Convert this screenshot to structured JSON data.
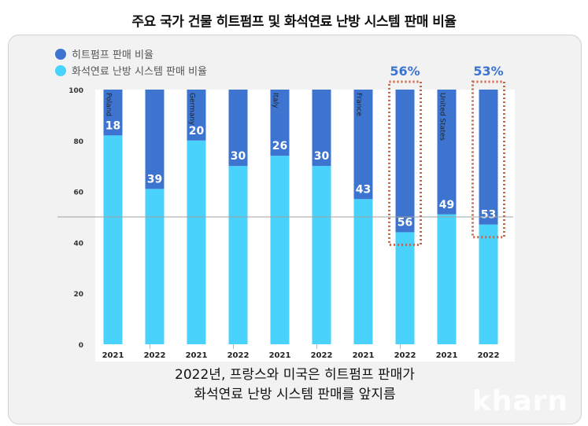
{
  "title": "주요 국가 건물 히트펌프 및 화석연료 난방 시스템 판매 비율",
  "caption_lines": [
    "2022년, 프랑스와 미국은 히트펌프 판매가",
    "화석연료 난방 시스템 판매를 앞지름"
  ],
  "watermark": "kharn",
  "colors": {
    "heat_pump": "#3c74d0",
    "fossil": "#49d2fb",
    "highlight_box": "#d0633e",
    "highlight_text": "#3c74d0",
    "reference_line": "#a0a0a0"
  },
  "chart_data": {
    "type": "bar",
    "stacked": true,
    "ylim": [
      0,
      100
    ],
    "yticks": [
      0,
      20,
      40,
      60,
      80,
      100
    ],
    "reference_line": 50,
    "legend": [
      "히트펌프 판매 비율",
      "화석연료 난방 시스템 판매 비율"
    ],
    "legend_position": "top-left",
    "countries": [
      "Poland",
      "Germany",
      "Italy",
      "France",
      "United States"
    ],
    "categories": [
      "2021",
      "2022",
      "2021",
      "2022",
      "2021",
      "2022",
      "2021",
      "2022",
      "2021",
      "2022"
    ],
    "series": [
      {
        "name": "히트펌프 판매 비율",
        "values": [
          18,
          39,
          20,
          30,
          26,
          30,
          43,
          56,
          49,
          53
        ]
      },
      {
        "name": "화석연료 난방 시스템 판매 비율",
        "values": [
          82,
          61,
          80,
          70,
          74,
          70,
          57,
          44,
          51,
          47
        ]
      }
    ],
    "data_labels": [
      "18",
      "39",
      "20",
      "30",
      "26",
      "30",
      "43",
      "56",
      "49",
      "53"
    ],
    "highlights": [
      {
        "index": 7,
        "label": "56%"
      },
      {
        "index": 9,
        "label": "53%"
      }
    ]
  }
}
